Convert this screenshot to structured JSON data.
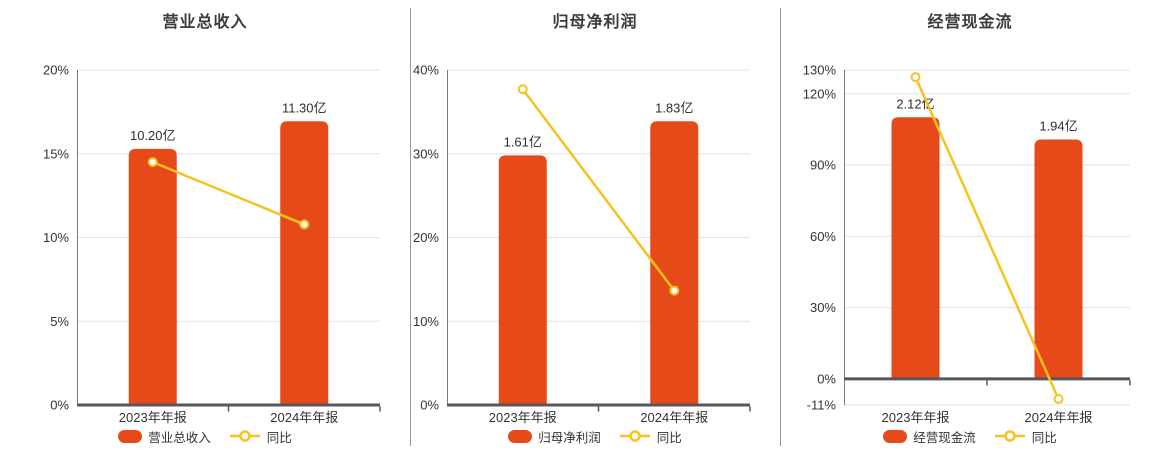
{
  "colors": {
    "bar": "#e64a19",
    "line": "#f5c31e",
    "marker_fill": "#ffffff",
    "grid": "#dfe3ec",
    "zero_axis": "#55565e",
    "axis_line": "#7a7b80",
    "divider": "#97989c",
    "text": "#333333",
    "title": "#3b3b40"
  },
  "chart_data": [
    {
      "type": "bar+line",
      "title": "营业总收入",
      "categories": [
        "2023年年报",
        "2024年年报"
      ],
      "bar_series": {
        "name": "营业总收入",
        "unit": "亿",
        "values_yi": [
          10.2,
          11.3
        ],
        "labels": [
          "10.20亿",
          "11.30亿"
        ]
      },
      "line_series": {
        "name": "同比",
        "values_pct": [
          14.5,
          10.78
        ]
      },
      "y_axis": {
        "min": 0,
        "max": 20,
        "ticks": [
          0,
          5,
          10,
          15,
          20
        ],
        "tick_labels": [
          "0%",
          "5%",
          "10%",
          "15%",
          "20%"
        ]
      },
      "legend_position": "bottom",
      "grid": true
    },
    {
      "type": "bar+line",
      "title": "归母净利润",
      "categories": [
        "2023年年报",
        "2024年年报"
      ],
      "bar_series": {
        "name": "归母净利润",
        "unit": "亿",
        "values_yi": [
          1.61,
          1.83
        ],
        "labels": [
          "1.61亿",
          "1.83亿"
        ]
      },
      "line_series": {
        "name": "同比",
        "values_pct": [
          37.7,
          13.66
        ]
      },
      "y_axis": {
        "min": 0,
        "max": 40,
        "ticks": [
          0,
          10,
          20,
          30,
          40
        ],
        "tick_labels": [
          "0%",
          "10%",
          "20%",
          "30%",
          "40%"
        ]
      },
      "legend_position": "bottom",
      "grid": true
    },
    {
      "type": "bar+line",
      "title": "经营现金流",
      "categories": [
        "2023年年报",
        "2024年年报"
      ],
      "bar_series": {
        "name": "经营现金流",
        "unit": "亿",
        "values_yi": [
          2.12,
          1.94
        ],
        "labels": [
          "2.12亿",
          "1.94亿"
        ]
      },
      "line_series": {
        "name": "同比",
        "values_pct": [
          127.0,
          -8.49
        ]
      },
      "y_axis": {
        "min": -11,
        "max": 130,
        "ticks": [
          -11,
          0,
          30,
          60,
          90,
          120,
          130
        ],
        "tick_labels": [
          "-11%",
          "0%",
          "30%",
          "60%",
          "90%",
          "120%",
          "130%"
        ]
      },
      "legend_position": "bottom",
      "grid": true
    }
  ]
}
